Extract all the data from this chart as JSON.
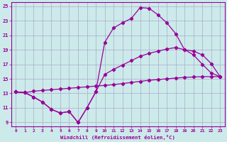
{
  "xlabel": "Windchill (Refroidissement éolien,°C)",
  "bg_color": "#cceaea",
  "line_color": "#990099",
  "grid_color": "#aaaacc",
  "xlim": [
    -0.5,
    23.5
  ],
  "ylim": [
    8.5,
    25.5
  ],
  "xticks": [
    0,
    1,
    2,
    3,
    4,
    5,
    6,
    7,
    8,
    9,
    10,
    11,
    12,
    13,
    14,
    15,
    16,
    17,
    18,
    19,
    20,
    21,
    22,
    23
  ],
  "yticks": [
    9,
    11,
    13,
    15,
    17,
    19,
    21,
    23,
    25
  ],
  "line1_x": [
    0,
    1,
    2,
    3,
    4,
    5,
    6,
    7,
    8,
    9,
    10,
    11,
    12,
    13,
    14,
    15,
    16,
    17,
    18,
    19,
    20,
    21,
    22,
    23
  ],
  "line1_y": [
    13.2,
    13.1,
    12.5,
    11.8,
    10.8,
    10.3,
    10.5,
    9.0,
    11.0,
    13.2,
    20.0,
    22.0,
    22.7,
    23.3,
    24.8,
    24.7,
    23.8,
    22.7,
    21.2,
    19.0,
    18.3,
    17.0,
    15.8,
    15.3
  ],
  "line2_x": [
    0,
    1,
    2,
    3,
    4,
    5,
    6,
    7,
    8,
    9,
    10,
    11,
    12,
    13,
    14,
    15,
    16,
    17,
    18,
    19,
    20,
    21,
    22,
    23
  ],
  "line2_y": [
    13.2,
    13.1,
    12.5,
    11.8,
    10.8,
    10.3,
    10.5,
    9.0,
    11.0,
    13.2,
    15.6,
    16.3,
    16.9,
    17.5,
    18.1,
    18.5,
    18.8,
    19.1,
    19.3,
    19.0,
    18.8,
    18.3,
    17.1,
    15.3
  ],
  "line3_x": [
    0,
    1,
    2,
    3,
    4,
    5,
    6,
    7,
    8,
    9,
    10,
    11,
    12,
    13,
    14,
    15,
    16,
    17,
    18,
    19,
    20,
    21,
    22,
    23
  ],
  "line3_y": [
    13.2,
    13.1,
    13.3,
    13.4,
    13.5,
    13.6,
    13.7,
    13.8,
    13.9,
    14.0,
    14.1,
    14.2,
    14.35,
    14.5,
    14.65,
    14.8,
    14.9,
    15.0,
    15.1,
    15.2,
    15.25,
    15.3,
    15.3,
    15.3
  ]
}
